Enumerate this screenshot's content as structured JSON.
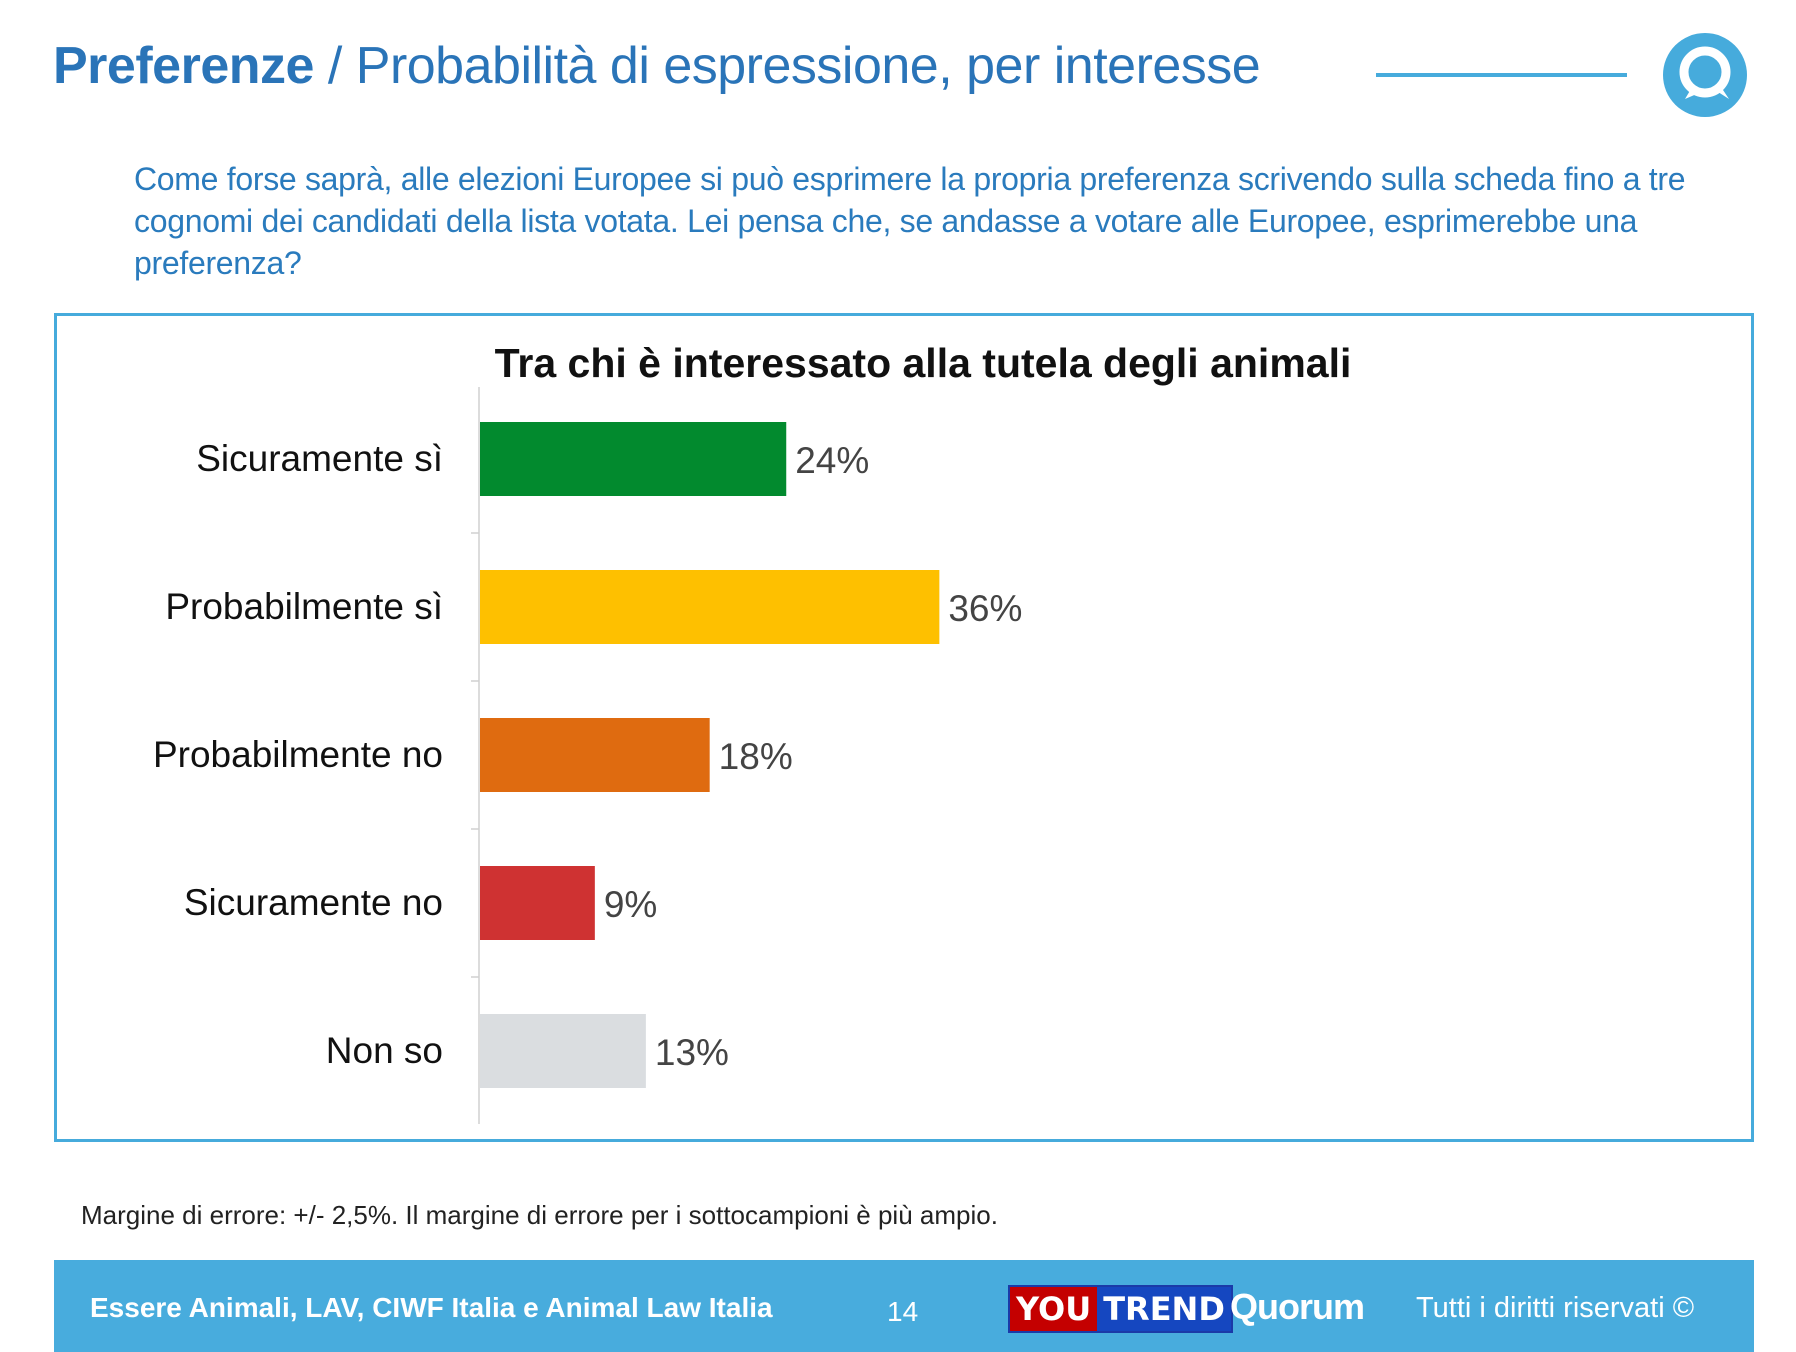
{
  "header": {
    "title_bold": "Preferenze",
    "title_rest": " / Probabilità di espressione, per interesse",
    "logo_icon": "quorum-speech-q-icon"
  },
  "question": "Come forse saprà, alle elezioni Europee si può esprimere la propria preferenza scrivendo sulla scheda fino a tre cognomi dei candidati della lista votata. Lei pensa che, se andasse a votare alle Europee, esprimerebbe una preferenza?",
  "chart_data": {
    "type": "bar",
    "orientation": "horizontal",
    "title": "Tra chi è interessato alla tutela degli animali",
    "categories": [
      "Sicuramente sì",
      "Probabilmente sì",
      "Probabilmente no",
      "Sicuramente no",
      "Non so"
    ],
    "values": [
      24,
      36,
      18,
      9,
      13
    ],
    "value_labels": [
      "24%",
      "36%",
      "18%",
      "9%",
      "13%"
    ],
    "colors": [
      "#028a2e",
      "#fec000",
      "#df6b10",
      "#cf3232",
      "#dadde0"
    ],
    "xlabel": "",
    "ylabel": "",
    "xlim": [
      0,
      100
    ],
    "grid": false
  },
  "footnote": "Margine di errore: +/- 2,5%. Il margine di errore per i sottocampioni è più ampio.",
  "footer": {
    "org": "Essere Animali, LAV, CIWF Italia e Animal Law Italia",
    "page": "14",
    "youtrend_you": "YOU",
    "youtrend_trend": "TREND",
    "quorum": "Quorum",
    "rights": "Tutti i diritti riservati ©"
  },
  "colors": {
    "accent": "#2a74b8",
    "line": "#46abdc",
    "footer_bg": "#48acdd"
  }
}
